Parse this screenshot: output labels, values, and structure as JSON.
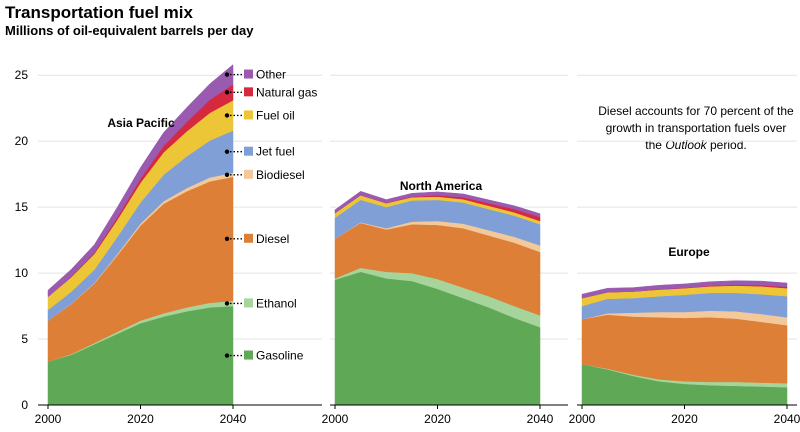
{
  "title": "Transportation fuel mix",
  "subtitle": "Millions of oil-equivalent barrels per day",
  "note": {
    "before": "Diesel accounts for 70 percent of the growth in transportation fuels over the ",
    "emph": "Outlook",
    "after": " period."
  },
  "colors": {
    "Gasoline": "#5fa856",
    "Ethanol": "#a6d49a",
    "Diesel": "#dd7f36",
    "Biodiesel": "#f3c89a",
    "Jet fuel": "#7f9fd6",
    "Fuel oil": "#edc637",
    "Natural gas": "#d6283e",
    "Other": "#9a5ab0"
  },
  "chart_data": {
    "type": "area",
    "stacked": true,
    "y_axis": {
      "ylim": [
        0,
        26
      ],
      "ticks": [
        0,
        5,
        10,
        15,
        20,
        25
      ]
    },
    "x_axis": {
      "xlim": [
        2000,
        2040
      ],
      "ticks": [
        2000,
        2020,
        2040
      ]
    },
    "legend": {
      "placement": "right of Asia Pacific panel",
      "order_top_to_bottom": [
        "Other",
        "Natural gas",
        "Fuel oil",
        "Jet fuel",
        "Biodiesel",
        "Diesel",
        "Ethanol",
        "Gasoline"
      ]
    },
    "panels": [
      {
        "name": "Asia Pacific",
        "x": [
          2000,
          2005,
          2010,
          2015,
          2020,
          2025,
          2030,
          2035,
          2040
        ],
        "series": [
          {
            "name": "Gasoline",
            "values": [
              3.3,
              3.8,
              4.6,
              5.4,
              6.2,
              6.7,
              7.1,
              7.4,
              7.5
            ]
          },
          {
            "name": "Ethanol",
            "values": [
              0.0,
              0.05,
              0.1,
              0.15,
              0.2,
              0.25,
              0.3,
              0.35,
              0.4
            ]
          },
          {
            "name": "Diesel",
            "values": [
              3.1,
              3.8,
              4.5,
              5.8,
              7.2,
              8.3,
              8.8,
              9.2,
              9.4
            ]
          },
          {
            "name": "Biodiesel",
            "values": [
              0.0,
              0.02,
              0.05,
              0.1,
              0.15,
              0.2,
              0.25,
              0.3,
              0.3
            ]
          },
          {
            "name": "Jet fuel",
            "values": [
              0.8,
              0.9,
              1.0,
              1.3,
              1.6,
              2.0,
              2.4,
              2.8,
              3.2
            ]
          },
          {
            "name": "Fuel oil",
            "values": [
              1.0,
              1.1,
              1.2,
              1.3,
              1.5,
              1.7,
              1.9,
              2.1,
              2.3
            ]
          },
          {
            "name": "Natural gas",
            "values": [
              0.0,
              0.05,
              0.1,
              0.2,
              0.3,
              0.5,
              0.7,
              1.0,
              1.2
            ]
          },
          {
            "name": "Other",
            "values": [
              0.5,
              0.55,
              0.6,
              0.75,
              0.85,
              1.0,
              1.1,
              1.2,
              1.5
            ]
          }
        ]
      },
      {
        "name": "North America",
        "x": [
          2000,
          2005,
          2010,
          2015,
          2020,
          2025,
          2030,
          2035,
          2040
        ],
        "series": [
          {
            "name": "Gasoline",
            "values": [
              9.5,
              10.1,
              9.6,
              9.4,
              8.8,
              8.1,
              7.4,
              6.6,
              5.9
            ]
          },
          {
            "name": "Ethanol",
            "values": [
              0.1,
              0.3,
              0.5,
              0.6,
              0.75,
              0.8,
              0.85,
              0.9,
              0.9
            ]
          },
          {
            "name": "Diesel",
            "values": [
              3.0,
              3.4,
              3.2,
              3.7,
              4.1,
              4.5,
              4.6,
              4.8,
              4.8
            ]
          },
          {
            "name": "Biodiesel",
            "values": [
              0.0,
              0.05,
              0.1,
              0.2,
              0.3,
              0.35,
              0.4,
              0.45,
              0.5
            ]
          },
          {
            "name": "Jet fuel",
            "values": [
              1.6,
              1.7,
              1.6,
              1.6,
              1.6,
              1.6,
              1.6,
              1.6,
              1.6
            ]
          },
          {
            "name": "Fuel oil",
            "values": [
              0.35,
              0.35,
              0.3,
              0.25,
              0.25,
              0.25,
              0.25,
              0.25,
              0.25
            ]
          },
          {
            "name": "Natural gas",
            "values": [
              0.0,
              0.0,
              0.02,
              0.05,
              0.1,
              0.15,
              0.2,
              0.25,
              0.3
            ]
          },
          {
            "name": "Other",
            "values": [
              0.25,
              0.3,
              0.25,
              0.25,
              0.25,
              0.25,
              0.25,
              0.25,
              0.25
            ]
          }
        ]
      },
      {
        "name": "Europe",
        "x": [
          2000,
          2005,
          2010,
          2015,
          2020,
          2025,
          2030,
          2035,
          2040
        ],
        "series": [
          {
            "name": "Gasoline",
            "values": [
              3.1,
              2.7,
              2.2,
              1.8,
              1.6,
              1.5,
              1.45,
              1.4,
              1.35
            ]
          },
          {
            "name": "Ethanol",
            "values": [
              0.0,
              0.05,
              0.1,
              0.15,
              0.2,
              0.25,
              0.3,
              0.3,
              0.3
            ]
          },
          {
            "name": "Diesel",
            "values": [
              3.4,
              4.1,
              4.4,
              4.7,
              4.8,
              4.9,
              4.8,
              4.6,
              4.4
            ]
          },
          {
            "name": "Biodiesel",
            "values": [
              0.0,
              0.1,
              0.3,
              0.4,
              0.45,
              0.5,
              0.55,
              0.6,
              0.6
            ]
          },
          {
            "name": "Jet fuel",
            "values": [
              1.0,
              1.1,
              1.1,
              1.2,
              1.3,
              1.35,
              1.4,
              1.5,
              1.6
            ]
          },
          {
            "name": "Fuel oil",
            "values": [
              0.6,
              0.5,
              0.5,
              0.5,
              0.5,
              0.5,
              0.55,
              0.6,
              0.6
            ]
          },
          {
            "name": "Natural gas",
            "values": [
              0.0,
              0.0,
              0.0,
              0.02,
              0.03,
              0.05,
              0.07,
              0.09,
              0.1
            ]
          },
          {
            "name": "Other",
            "values": [
              0.3,
              0.3,
              0.3,
              0.3,
              0.3,
              0.3,
              0.3,
              0.3,
              0.3
            ]
          }
        ]
      }
    ]
  }
}
